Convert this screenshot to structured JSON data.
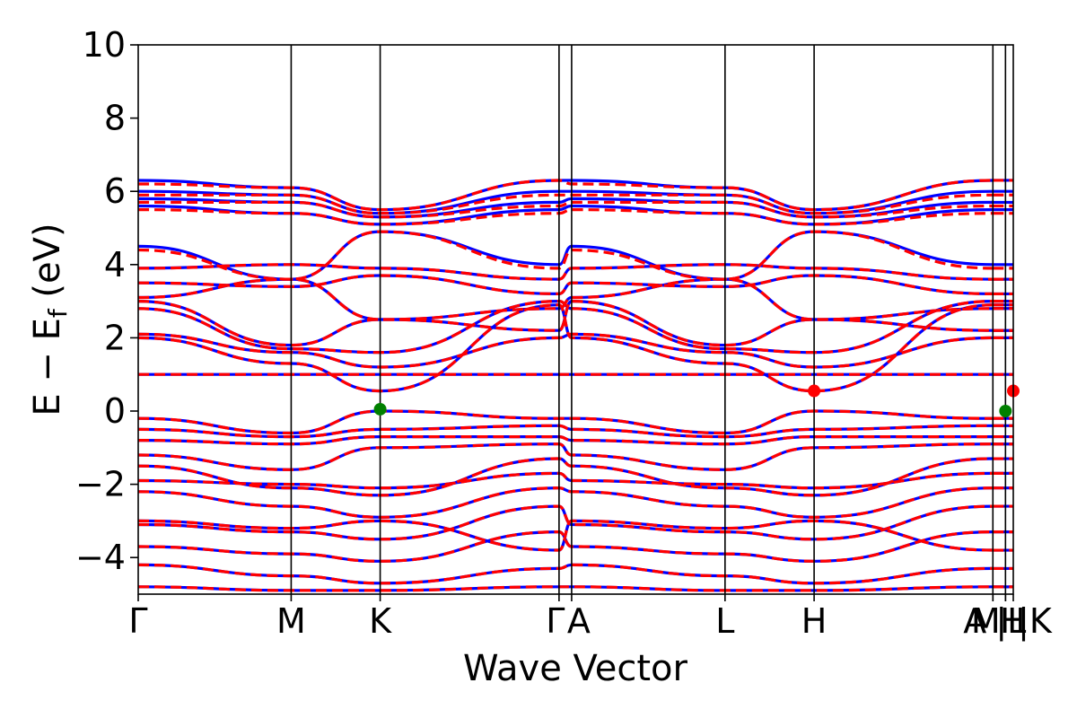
{
  "chart_data": {
    "type": "line",
    "xlabel": "Wave Vector",
    "ylabel_main": "E − E",
    "ylabel_sub": "f",
    "ylabel_unit": " (eV)",
    "ylim": [
      -5,
      10
    ],
    "yticks": [
      10,
      8,
      6,
      4,
      2,
      0,
      -2,
      -4
    ],
    "ytick_labels": [
      "10",
      "8",
      "6",
      "4",
      "2",
      "0",
      "−2",
      "−4"
    ],
    "xlim": [
      0,
      1
    ],
    "kpoints": [
      {
        "label": "Γ",
        "x": 0.0
      },
      {
        "label": "M",
        "x": 0.1748
      },
      {
        "label": "K",
        "x": 0.2765
      },
      {
        "label": "Γ",
        "x": 0.4809
      },
      {
        "label": "A",
        "x": 0.4953
      },
      {
        "label": "L",
        "x": 0.6706
      },
      {
        "label": "H",
        "x": 0.7724
      },
      {
        "label": "A",
        "x": 0.9767
      },
      {
        "label": "M",
        "x": 0.9767
      },
      {
        "label": "|L",
        "x": 0.9911
      },
      {
        "label": "H",
        "x": 0.9911
      },
      {
        "label": "|K",
        "x": 1.0
      }
    ],
    "series": [
      {
        "style": "solid",
        "color": "#0000ff",
        "bands": [
          [
            -4.8,
            -4.9,
            -4.9,
            -4.8,
            -4.8,
            -4.9,
            -4.9,
            -4.8
          ],
          [
            -4.2,
            -4.5,
            -4.7,
            -4.3,
            -4.2,
            -4.5,
            -4.7,
            -4.3
          ],
          [
            -3.7,
            -3.9,
            -4.1,
            -3.3,
            -3.7,
            -3.9,
            -4.1,
            -3.3
          ],
          [
            -3.1,
            -3.3,
            -3.5,
            -2.6,
            -3.1,
            -3.3,
            -3.5,
            -2.6
          ],
          [
            -3.0,
            -3.2,
            -3.0,
            -3.8,
            -3.0,
            -3.2,
            -3.0,
            -3.8
          ],
          [
            -2.2,
            -2.6,
            -2.9,
            -2.1,
            -2.2,
            -2.6,
            -2.9,
            -2.1
          ],
          [
            -1.9,
            -2.0,
            -2.1,
            -1.7,
            -1.9,
            -2.0,
            -2.1,
            -1.7
          ],
          [
            -1.5,
            -2.1,
            -2.3,
            -1.3,
            -1.5,
            -2.1,
            -2.3,
            -1.3
          ],
          [
            -1.2,
            -1.6,
            -1.0,
            -0.9,
            -1.2,
            -1.6,
            -1.0,
            -0.9
          ],
          [
            -0.8,
            -0.9,
            -0.7,
            -0.7,
            -0.8,
            -0.9,
            -0.7,
            -0.7
          ],
          [
            -0.5,
            -0.7,
            -0.5,
            -0.4,
            -0.5,
            -0.7,
            -0.5,
            -0.4
          ],
          [
            -0.2,
            -0.6,
            0.0,
            -0.2,
            -0.2,
            -0.6,
            0.0,
            -0.2
          ],
          [
            1.0,
            1.0,
            1.0,
            1.0,
            1.0,
            1.0,
            1.0,
            1.0
          ],
          [
            2.0,
            1.3,
            0.55,
            2.9,
            2.0,
            1.3,
            0.55,
            2.9
          ],
          [
            2.1,
            1.6,
            1.2,
            2.0,
            2.1,
            1.6,
            1.2,
            2.0
          ],
          [
            2.8,
            1.7,
            1.6,
            3.0,
            2.8,
            1.7,
            1.6,
            3.0
          ],
          [
            3.0,
            1.8,
            2.5,
            2.2,
            3.0,
            1.8,
            2.5,
            2.2
          ],
          [
            3.1,
            3.6,
            2.5,
            2.8,
            3.1,
            3.6,
            2.5,
            2.8
          ],
          [
            3.5,
            3.4,
            3.7,
            3.2,
            3.5,
            3.4,
            3.7,
            3.2
          ],
          [
            3.9,
            4.0,
            3.9,
            3.6,
            3.9,
            4.0,
            3.9,
            3.6
          ],
          [
            4.5,
            3.6,
            4.9,
            4.0,
            4.5,
            3.6,
            4.9,
            4.0
          ],
          [
            5.6,
            5.4,
            5.1,
            5.5,
            5.6,
            5.4,
            5.1,
            5.5
          ],
          [
            5.8,
            5.7,
            5.3,
            5.7,
            5.8,
            5.7,
            5.3,
            5.7
          ],
          [
            6.0,
            5.9,
            5.4,
            6.0,
            6.0,
            5.9,
            5.4,
            6.0
          ],
          [
            6.3,
            6.1,
            5.5,
            6.3,
            6.3,
            6.1,
            5.5,
            6.3
          ]
        ]
      },
      {
        "style": "dashed",
        "color": "#ff0000",
        "bands": [
          [
            -4.8,
            -4.9,
            -4.9,
            -4.8,
            -4.8,
            -4.9,
            -4.9,
            -4.8
          ],
          [
            -4.2,
            -4.5,
            -4.7,
            -4.3,
            -4.2,
            -4.5,
            -4.7,
            -4.3
          ],
          [
            -3.7,
            -3.9,
            -4.1,
            -3.3,
            -3.7,
            -3.9,
            -4.1,
            -3.3
          ],
          [
            -3.1,
            -3.3,
            -3.5,
            -2.6,
            -3.1,
            -3.3,
            -3.5,
            -2.6
          ],
          [
            -3.0,
            -3.2,
            -3.0,
            -3.8,
            -3.0,
            -3.2,
            -3.0,
            -3.8
          ],
          [
            -2.2,
            -2.6,
            -2.9,
            -2.1,
            -2.2,
            -2.6,
            -2.9,
            -2.1
          ],
          [
            -1.9,
            -2.0,
            -2.1,
            -1.7,
            -1.9,
            -2.0,
            -2.1,
            -1.7
          ],
          [
            -1.5,
            -2.1,
            -2.3,
            -1.3,
            -1.5,
            -2.1,
            -2.3,
            -1.3
          ],
          [
            -1.2,
            -1.6,
            -1.0,
            -0.9,
            -1.2,
            -1.6,
            -1.0,
            -0.9
          ],
          [
            -0.8,
            -0.9,
            -0.7,
            -0.7,
            -0.8,
            -0.9,
            -0.7,
            -0.7
          ],
          [
            -0.5,
            -0.7,
            -0.5,
            -0.4,
            -0.5,
            -0.7,
            -0.5,
            -0.4
          ],
          [
            -0.2,
            -0.6,
            0.0,
            -0.2,
            -0.2,
            -0.6,
            0.0,
            -0.2
          ],
          [
            1.0,
            1.0,
            1.0,
            1.0,
            1.0,
            1.0,
            1.0,
            1.0
          ],
          [
            2.0,
            1.3,
            0.55,
            2.9,
            2.0,
            1.3,
            0.55,
            2.9
          ],
          [
            2.1,
            1.6,
            1.2,
            2.0,
            2.1,
            1.6,
            1.2,
            2.0
          ],
          [
            2.8,
            1.7,
            1.6,
            3.0,
            2.8,
            1.7,
            1.6,
            3.0
          ],
          [
            3.0,
            1.8,
            2.5,
            2.2,
            3.0,
            1.8,
            2.5,
            2.2
          ],
          [
            3.1,
            3.6,
            2.5,
            2.8,
            3.1,
            3.6,
            2.5,
            2.8
          ],
          [
            3.5,
            3.4,
            3.7,
            3.2,
            3.5,
            3.4,
            3.7,
            3.2
          ],
          [
            3.9,
            4.0,
            3.9,
            3.6,
            3.9,
            4.0,
            3.9,
            3.6
          ],
          [
            4.4,
            3.6,
            4.9,
            3.9,
            4.4,
            3.6,
            4.9,
            3.9
          ],
          [
            5.5,
            5.4,
            5.1,
            5.4,
            5.5,
            5.4,
            5.1,
            5.4
          ],
          [
            5.7,
            5.7,
            5.3,
            5.6,
            5.7,
            5.7,
            5.3,
            5.6
          ],
          [
            5.9,
            5.9,
            5.4,
            5.9,
            5.9,
            5.9,
            5.4,
            5.9
          ],
          [
            6.2,
            6.1,
            5.5,
            6.3,
            6.2,
            6.1,
            5.5,
            6.3
          ]
        ]
      }
    ],
    "markers": [
      {
        "name": "vbm",
        "color": "#008000",
        "x": 0.2765,
        "y": 0.05
      },
      {
        "name": "cbm",
        "color": "#ff0000",
        "x": 0.7724,
        "y": 0.55
      },
      {
        "name": "vbm",
        "color": "#008000",
        "x": 0.9911,
        "y": 0.0
      },
      {
        "name": "cbm",
        "color": "#ff0000",
        "x": 1.0,
        "y": 0.55
      }
    ]
  }
}
